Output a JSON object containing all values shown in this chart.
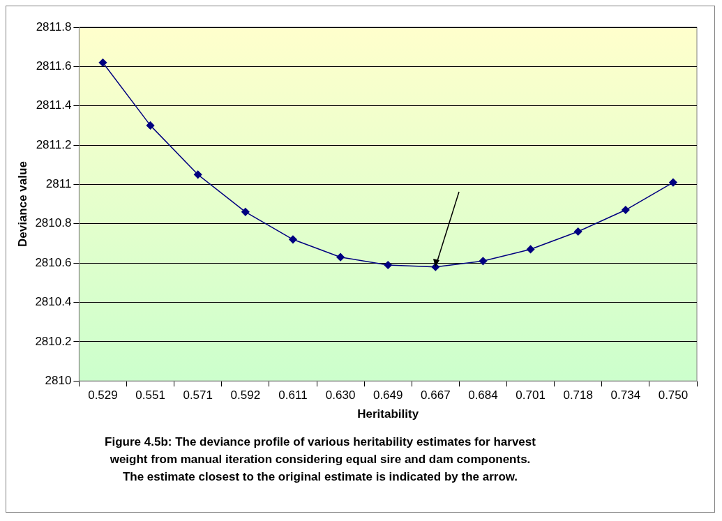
{
  "chart_data": {
    "type": "line",
    "xlabel": "Heritability",
    "ylabel": "Deviance value",
    "categories": [
      "0.529",
      "0.551",
      "0.571",
      "0.592",
      "0.611",
      "0.630",
      "0.649",
      "0.667",
      "0.684",
      "0.701",
      "0.718",
      "0.734",
      "0.750"
    ],
    "series": [
      {
        "color": "#000080",
        "values": [
          2811.62,
          2811.3,
          2811.05,
          2810.86,
          2810.72,
          2810.63,
          2810.59,
          2810.58,
          2810.61,
          2810.67,
          2810.76,
          2810.87,
          2811.01
        ]
      }
    ],
    "ylim": [
      2810,
      2811.8
    ],
    "yticks": [
      2810,
      2810.2,
      2810.4,
      2810.6,
      2810.8,
      2811,
      2811.2,
      2811.4,
      2811.6,
      2811.8
    ],
    "grid": "y",
    "legend": false,
    "marker": "diamond",
    "line_style": "solid",
    "annotations": [
      "Figure 4.5b: The deviance profile of various heritability estimates for harvest",
      "weight from manual iteration considering equal sire and dam components.",
      "The estimate closest to the original estimate is indicated by the arrow."
    ]
  }
}
